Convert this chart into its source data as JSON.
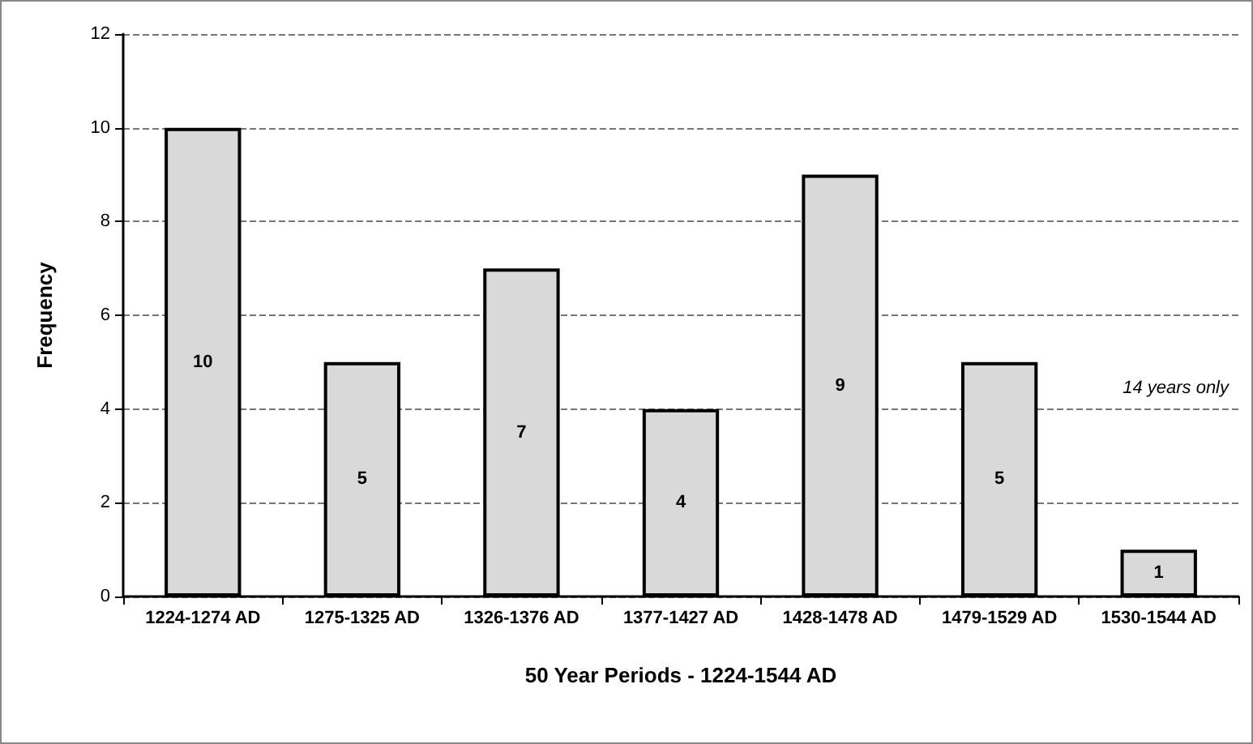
{
  "chart_data": {
    "type": "bar",
    "xlabel": "50 Year Periods - 1224-1544 AD",
    "ylabel": "Frequency",
    "categories": [
      "1224-1274 AD",
      "1275-1325 AD",
      "1326-1376 AD",
      "1377-1427 AD",
      "1428-1478 AD",
      "1479-1529 AD",
      "1530-1544 AD"
    ],
    "values": [
      10,
      5,
      7,
      4,
      9,
      5,
      1
    ],
    "color": "#d9d9d9",
    "ylim": [
      0,
      12
    ],
    "yticks": [
      0,
      2,
      4,
      6,
      8,
      10,
      12
    ],
    "grid": "y",
    "data_labels": true,
    "annotations": [
      "14 years only"
    ]
  }
}
